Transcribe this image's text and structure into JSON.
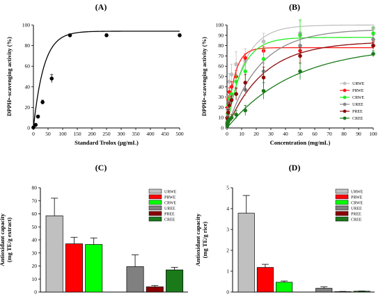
{
  "panel_labels": [
    "(A)",
    "(B)",
    "(C)",
    "(D)"
  ],
  "chart_data": [
    {
      "panel": "(A)",
      "type": "scatter",
      "xlabel": "Standard Trolox (μg/mL)",
      "ylabel": "DPPH•-scavenging activity (%)",
      "xlim": [
        0,
        500
      ],
      "ylim": [
        0,
        100
      ],
      "xticks": [
        0,
        50,
        100,
        150,
        200,
        250,
        300,
        350,
        400,
        450,
        500
      ],
      "yticks": [
        0,
        20,
        40,
        60,
        80,
        100
      ],
      "grid": false,
      "series": [
        {
          "color": "#000000",
          "x": [
            0,
            7.8,
            15.6,
            31.3,
            62.5,
            125,
            250,
            500
          ],
          "y": [
            0.5,
            3,
            11,
            25,
            48,
            90,
            90,
            90
          ],
          "err": [
            0,
            1,
            1.5,
            2,
            4,
            1.5,
            1.5,
            1.5
          ]
        }
      ],
      "fit": [
        {
          "color": "#000000",
          "ymax": 94,
          "k": 0.028
        }
      ]
    },
    {
      "panel": "(B)",
      "type": "line",
      "xlabel": "Concentration (mg/mL)",
      "ylabel": "DPPH•-scavenging activity (%)",
      "xlim": [
        0,
        100
      ],
      "ylim": [
        0,
        100
      ],
      "xticks": [
        0,
        10,
        20,
        30,
        40,
        50,
        60,
        70,
        80,
        90,
        100
      ],
      "yticks": [
        0,
        10,
        20,
        30,
        40,
        50,
        60,
        70,
        80,
        90,
        100
      ],
      "grid": false,
      "legend_position": "bottom-right",
      "x": [
        0.195,
        0.39,
        0.78,
        1.56,
        3.125,
        6.25,
        12.5,
        25,
        50,
        100
      ],
      "series": [
        {
          "name": "URWE",
          "color": "#c0c0c0",
          "y": [
            9,
            18,
            30,
            45,
            52,
            62,
            65,
            84,
            92,
            97
          ],
          "err": [
            2,
            3,
            4,
            8,
            10,
            12,
            12,
            8,
            12,
            3
          ]
        },
        {
          "name": "PRWE",
          "color": "#ff1a1a",
          "y": [
            10,
            20,
            28,
            35,
            40,
            50,
            68,
            75,
            75,
            80
          ],
          "err": [
            2,
            3,
            3,
            4,
            5,
            6,
            4,
            4,
            4,
            4
          ]
        },
        {
          "name": "CRWE",
          "color": "#22ee22",
          "y": [
            6,
            14,
            22,
            28,
            33,
            45,
            55,
            67,
            90,
            92
          ],
          "err": [
            2,
            2,
            3,
            3,
            4,
            6,
            8,
            10,
            15,
            6
          ]
        },
        {
          "name": "UREE",
          "color": "#888888",
          "y": [
            5,
            11,
            18,
            24,
            28,
            33,
            37,
            55,
            80,
            86
          ],
          "err": [
            2,
            2,
            3,
            3,
            4,
            5,
            6,
            8,
            12,
            4
          ]
        },
        {
          "name": "PREE",
          "color": "#8b0a0a",
          "y": [
            4,
            9,
            15,
            22,
            27,
            33,
            44,
            49,
            70,
            80
          ],
          "err": [
            2,
            2,
            3,
            3,
            4,
            6,
            8,
            10,
            8,
            3
          ]
        },
        {
          "name": "CREE",
          "color": "#1a7a1a",
          "y": [
            2,
            4,
            6,
            8,
            10,
            13,
            17,
            36,
            55,
            72
          ],
          "err": [
            1,
            1,
            2,
            2,
            3,
            4,
            5,
            8,
            8,
            3
          ]
        }
      ],
      "fit": [
        {
          "color": "#c0c0c0",
          "ymax": 100,
          "k": 0.085
        },
        {
          "color": "#ff1a1a",
          "ymax": 78,
          "k": 0.2
        },
        {
          "color": "#22ee22",
          "ymax": 88,
          "k": 0.1
        },
        {
          "color": "#888888",
          "ymax": 96,
          "k": 0.045
        },
        {
          "color": "#8b0a0a",
          "ymax": 84,
          "k": 0.04
        },
        {
          "color": "#1a7a1a",
          "ymax": 80,
          "k": 0.022
        }
      ]
    },
    {
      "panel": "(C)",
      "type": "bar",
      "ylabel": "Antioxidant capacity (mg TE/g extract)",
      "ylim": [
        0,
        80
      ],
      "yticks": [
        0,
        10,
        20,
        30,
        40,
        50,
        60,
        70,
        80
      ],
      "grid": false,
      "legend_position": "top-right",
      "categories": [
        "URWE",
        "PRWE",
        "CRWE",
        "UREE",
        "PREE",
        "CREE"
      ],
      "colors": [
        "#c0c0c0",
        "#ff0000",
        "#00ff00",
        "#808080",
        "#8b0000",
        "#1a7a1a"
      ],
      "values": [
        58.5,
        37,
        36.5,
        19.5,
        4,
        17
      ],
      "errors": [
        13.5,
        5,
        5,
        9,
        1,
        2
      ]
    },
    {
      "panel": "(D)",
      "type": "bar",
      "ylabel": "Antioxidant capacity (mg TE/g rice)",
      "ylim": [
        0,
        5
      ],
      "yticks": [
        0,
        1,
        2,
        3,
        4,
        5
      ],
      "grid": false,
      "legend_position": "top-right",
      "categories": [
        "URWE",
        "PRWE",
        "CRWE",
        "UREE",
        "PREE",
        "CREE"
      ],
      "colors": [
        "#c0c0c0",
        "#ff0000",
        "#00ff00",
        "#808080",
        "#8b0000",
        "#1a7a1a"
      ],
      "values": [
        3.78,
        1.18,
        0.47,
        0.18,
        0.02,
        0.04
      ],
      "errors": [
        0.85,
        0.15,
        0.06,
        0.07,
        0.01,
        0.01
      ]
    }
  ]
}
